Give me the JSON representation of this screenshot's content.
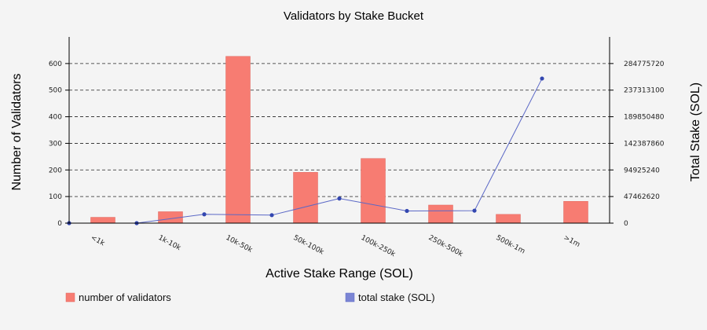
{
  "chart_data": {
    "type": "bar",
    "title": "Validators by Stake Bucket",
    "xlabel": "Active Stake Range (SOL)",
    "ylabel_left": "Number of Validators",
    "ylabel_right": "Total Stake (SOL)",
    "categories": [
      "<1k",
      "1k-10k",
      "10k-50k",
      "50k-100k",
      "100k-250k",
      "250k-500k",
      "500k-1m",
      ">1m"
    ],
    "ylim_left": [
      0,
      700
    ],
    "yticks_left": [
      0,
      100,
      200,
      300,
      400,
      500,
      600
    ],
    "ylim_right": [
      0,
      332238340
    ],
    "yticks_right": [
      0,
      47462620,
      94925240,
      142387860,
      189850480,
      237313100,
      284775720
    ],
    "grid": true,
    "legend_position": "bottom",
    "series": [
      {
        "name": "number of validators",
        "type": "bar",
        "axis": "left",
        "color": "#f77c72",
        "values": [
          22,
          43,
          627,
          191,
          243,
          68,
          33,
          82
        ]
      },
      {
        "name": "total stake (SOL)",
        "type": "line",
        "axis": "right",
        "color": "#5b68c6",
        "values": [
          0,
          0,
          15800000,
          14300000,
          44000000,
          21800000,
          22300000,
          258000000
        ]
      }
    ]
  }
}
